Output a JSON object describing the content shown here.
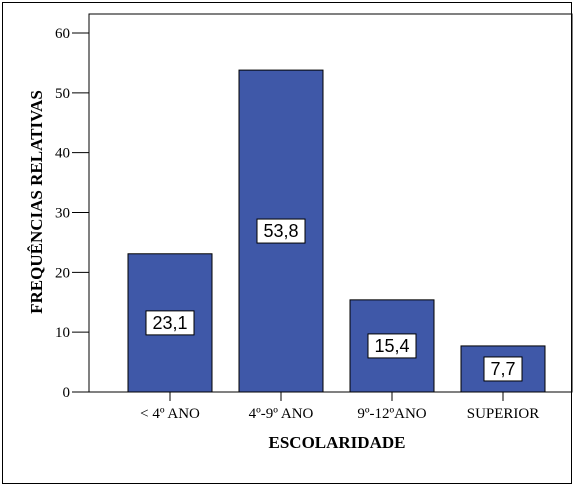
{
  "chart_data": {
    "type": "bar",
    "categories": [
      "< 4º ANO",
      "4º-9º ANO",
      "9º-12ºANO",
      "SUPERIOR"
    ],
    "values": [
      23.1,
      53.8,
      15.4,
      7.7
    ],
    "data_labels": [
      "23,1",
      "53,8",
      "15,4",
      "7,7"
    ],
    "title": "",
    "xlabel": "ESCOLARIDADE",
    "ylabel": "FREQUÊNCIAS RELATIVAS",
    "ylim": [
      0,
      60
    ],
    "yticks": [
      0,
      10,
      20,
      30,
      40,
      50,
      60
    ],
    "grid": false,
    "legend": "none",
    "bar_color": "#3f58a8"
  }
}
